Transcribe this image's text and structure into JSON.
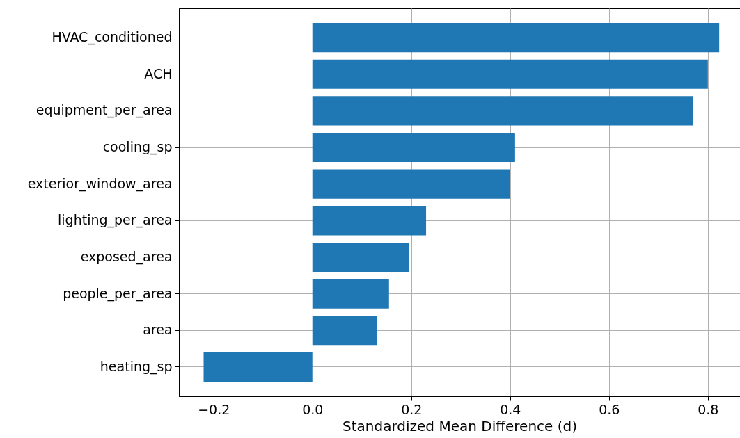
{
  "chart_data": {
    "type": "bar",
    "orientation": "horizontal",
    "xlabel": "Standardized Mean Difference (d)",
    "categories": [
      "HVAC_conditioned",
      "ACH",
      "equipment_per_area",
      "cooling_sp",
      "exterior_window_area",
      "lighting_per_area",
      "exposed_area",
      "people_per_area",
      "area",
      "heating_sp"
    ],
    "values": [
      0.823,
      0.8,
      0.77,
      0.41,
      0.4,
      0.23,
      0.196,
      0.155,
      0.13,
      -0.22
    ],
    "color": "#1f77b4",
    "xlim": [
      -0.27,
      0.865
    ],
    "xticks": [
      {
        "value": -0.2,
        "label": "−0.2"
      },
      {
        "value": 0,
        "label": "0.0"
      },
      {
        "value": 0.2,
        "label": "0.2"
      },
      {
        "value": 0.4,
        "label": "0.4"
      },
      {
        "value": 0.6,
        "label": "0.6"
      },
      {
        "value": 0.8,
        "label": "0.8"
      }
    ],
    "grid": true
  }
}
